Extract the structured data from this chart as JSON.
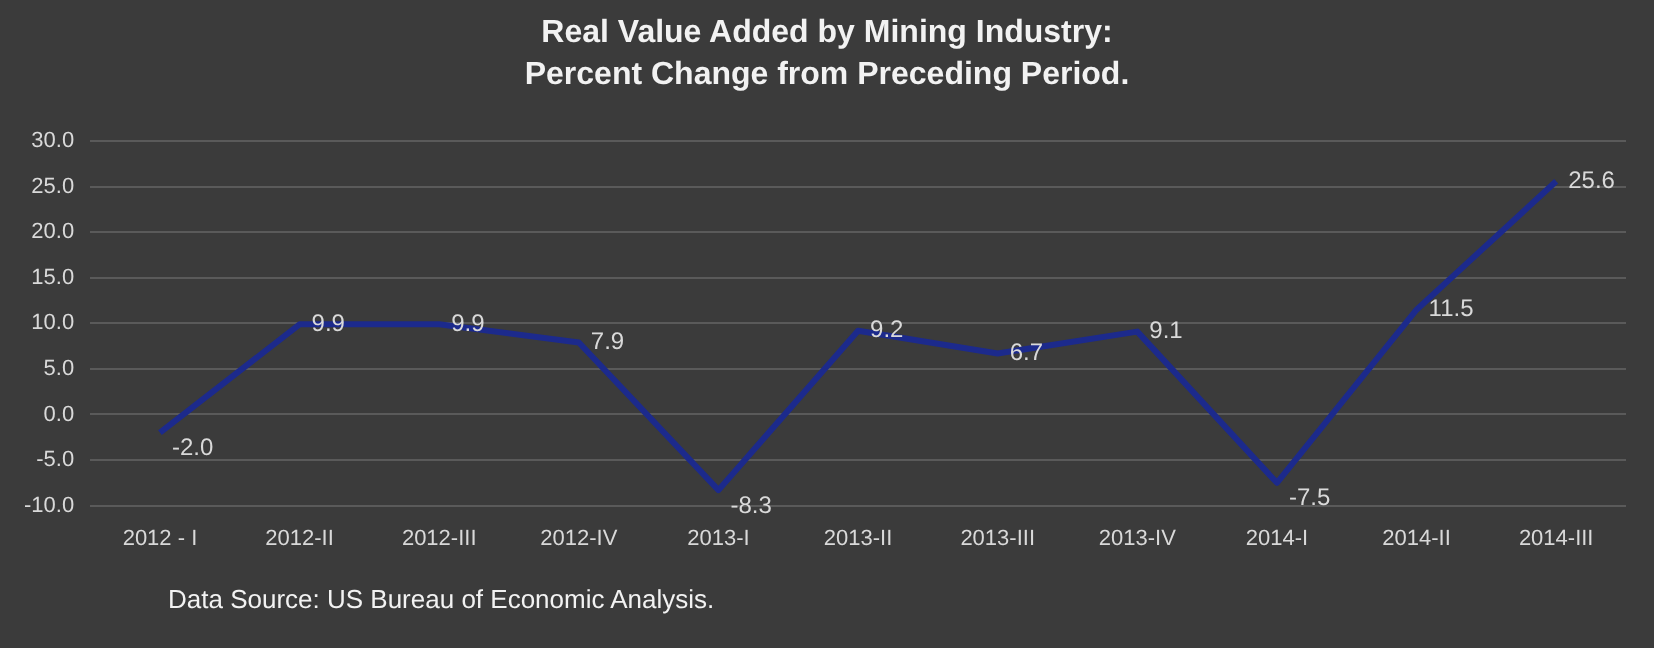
{
  "chart_data": {
    "type": "line",
    "title": "Real Value Added by Mining Industry:\nPercent Change from Preceding Period.",
    "categories": [
      "2012 - I",
      "2012-II",
      "2012-III",
      "2012-IV",
      "2013-I",
      "2013-II",
      "2013-III",
      "2013-IV",
      "2014-I",
      "2014-II",
      "2014-III"
    ],
    "series": [
      {
        "color": "#1c2a8c",
        "values": [
          -2.0,
          9.9,
          9.9,
          7.9,
          -8.3,
          9.2,
          6.7,
          9.1,
          -7.5,
          11.5,
          25.6
        ],
        "value_labels": [
          "-2.0",
          "9.9",
          "9.9",
          "7.9",
          "-8.3",
          "9.2",
          "6.7",
          "9.1",
          "-7.5",
          "11.5",
          "25.6"
        ]
      }
    ],
    "ylim": [
      -10,
      30
    ],
    "yticks": [
      {
        "value": -10,
        "label": "-10.0"
      },
      {
        "value": -5,
        "label": "-5.0"
      },
      {
        "value": 0,
        "label": "0.0"
      },
      {
        "value": 5,
        "label": "5.0"
      },
      {
        "value": 10,
        "label": "10.0"
      },
      {
        "value": 15,
        "label": "15.0"
      },
      {
        "value": 20,
        "label": "20.0"
      },
      {
        "value": 25,
        "label": "25.0"
      },
      {
        "value": 30,
        "label": "30.0"
      }
    ],
    "grid": "y",
    "legend": false,
    "marker": "none",
    "line_style": "solid",
    "annotations": [
      "Data Source: US Bureau of Economic Analysis."
    ]
  }
}
